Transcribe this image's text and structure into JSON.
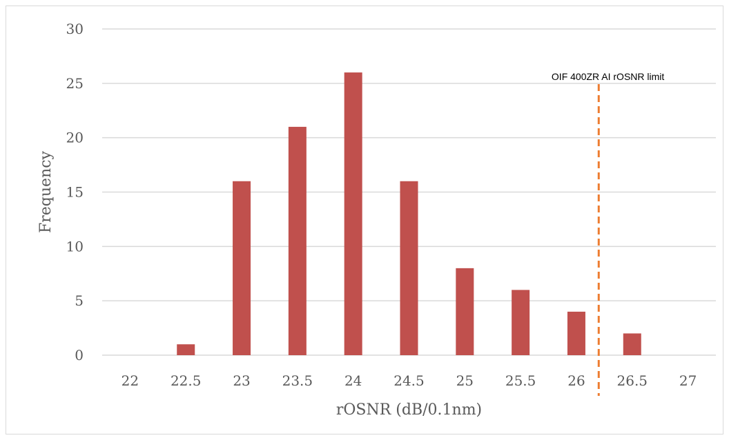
{
  "chart_data": {
    "type": "bar",
    "categories": [
      "22",
      "22.5",
      "23",
      "23.5",
      "24",
      "24.5",
      "25",
      "25.5",
      "26",
      "26.5",
      "27"
    ],
    "values": [
      0,
      1,
      16,
      21,
      26,
      16,
      8,
      6,
      4,
      2,
      0
    ],
    "xlabel": "rOSNR (dB/0.1nm)",
    "ylabel": "Frequency",
    "ylim": [
      0,
      30
    ],
    "yticks": [
      "0",
      "5",
      "10",
      "15",
      "20",
      "25",
      "30"
    ],
    "grid": true,
    "bar_color": "#c0504d",
    "annotation": {
      "label": "OIF 400ZR AI rOSNR limit",
      "x": 26.2,
      "line_style": "dashed",
      "color": "#ed7d31"
    }
  }
}
